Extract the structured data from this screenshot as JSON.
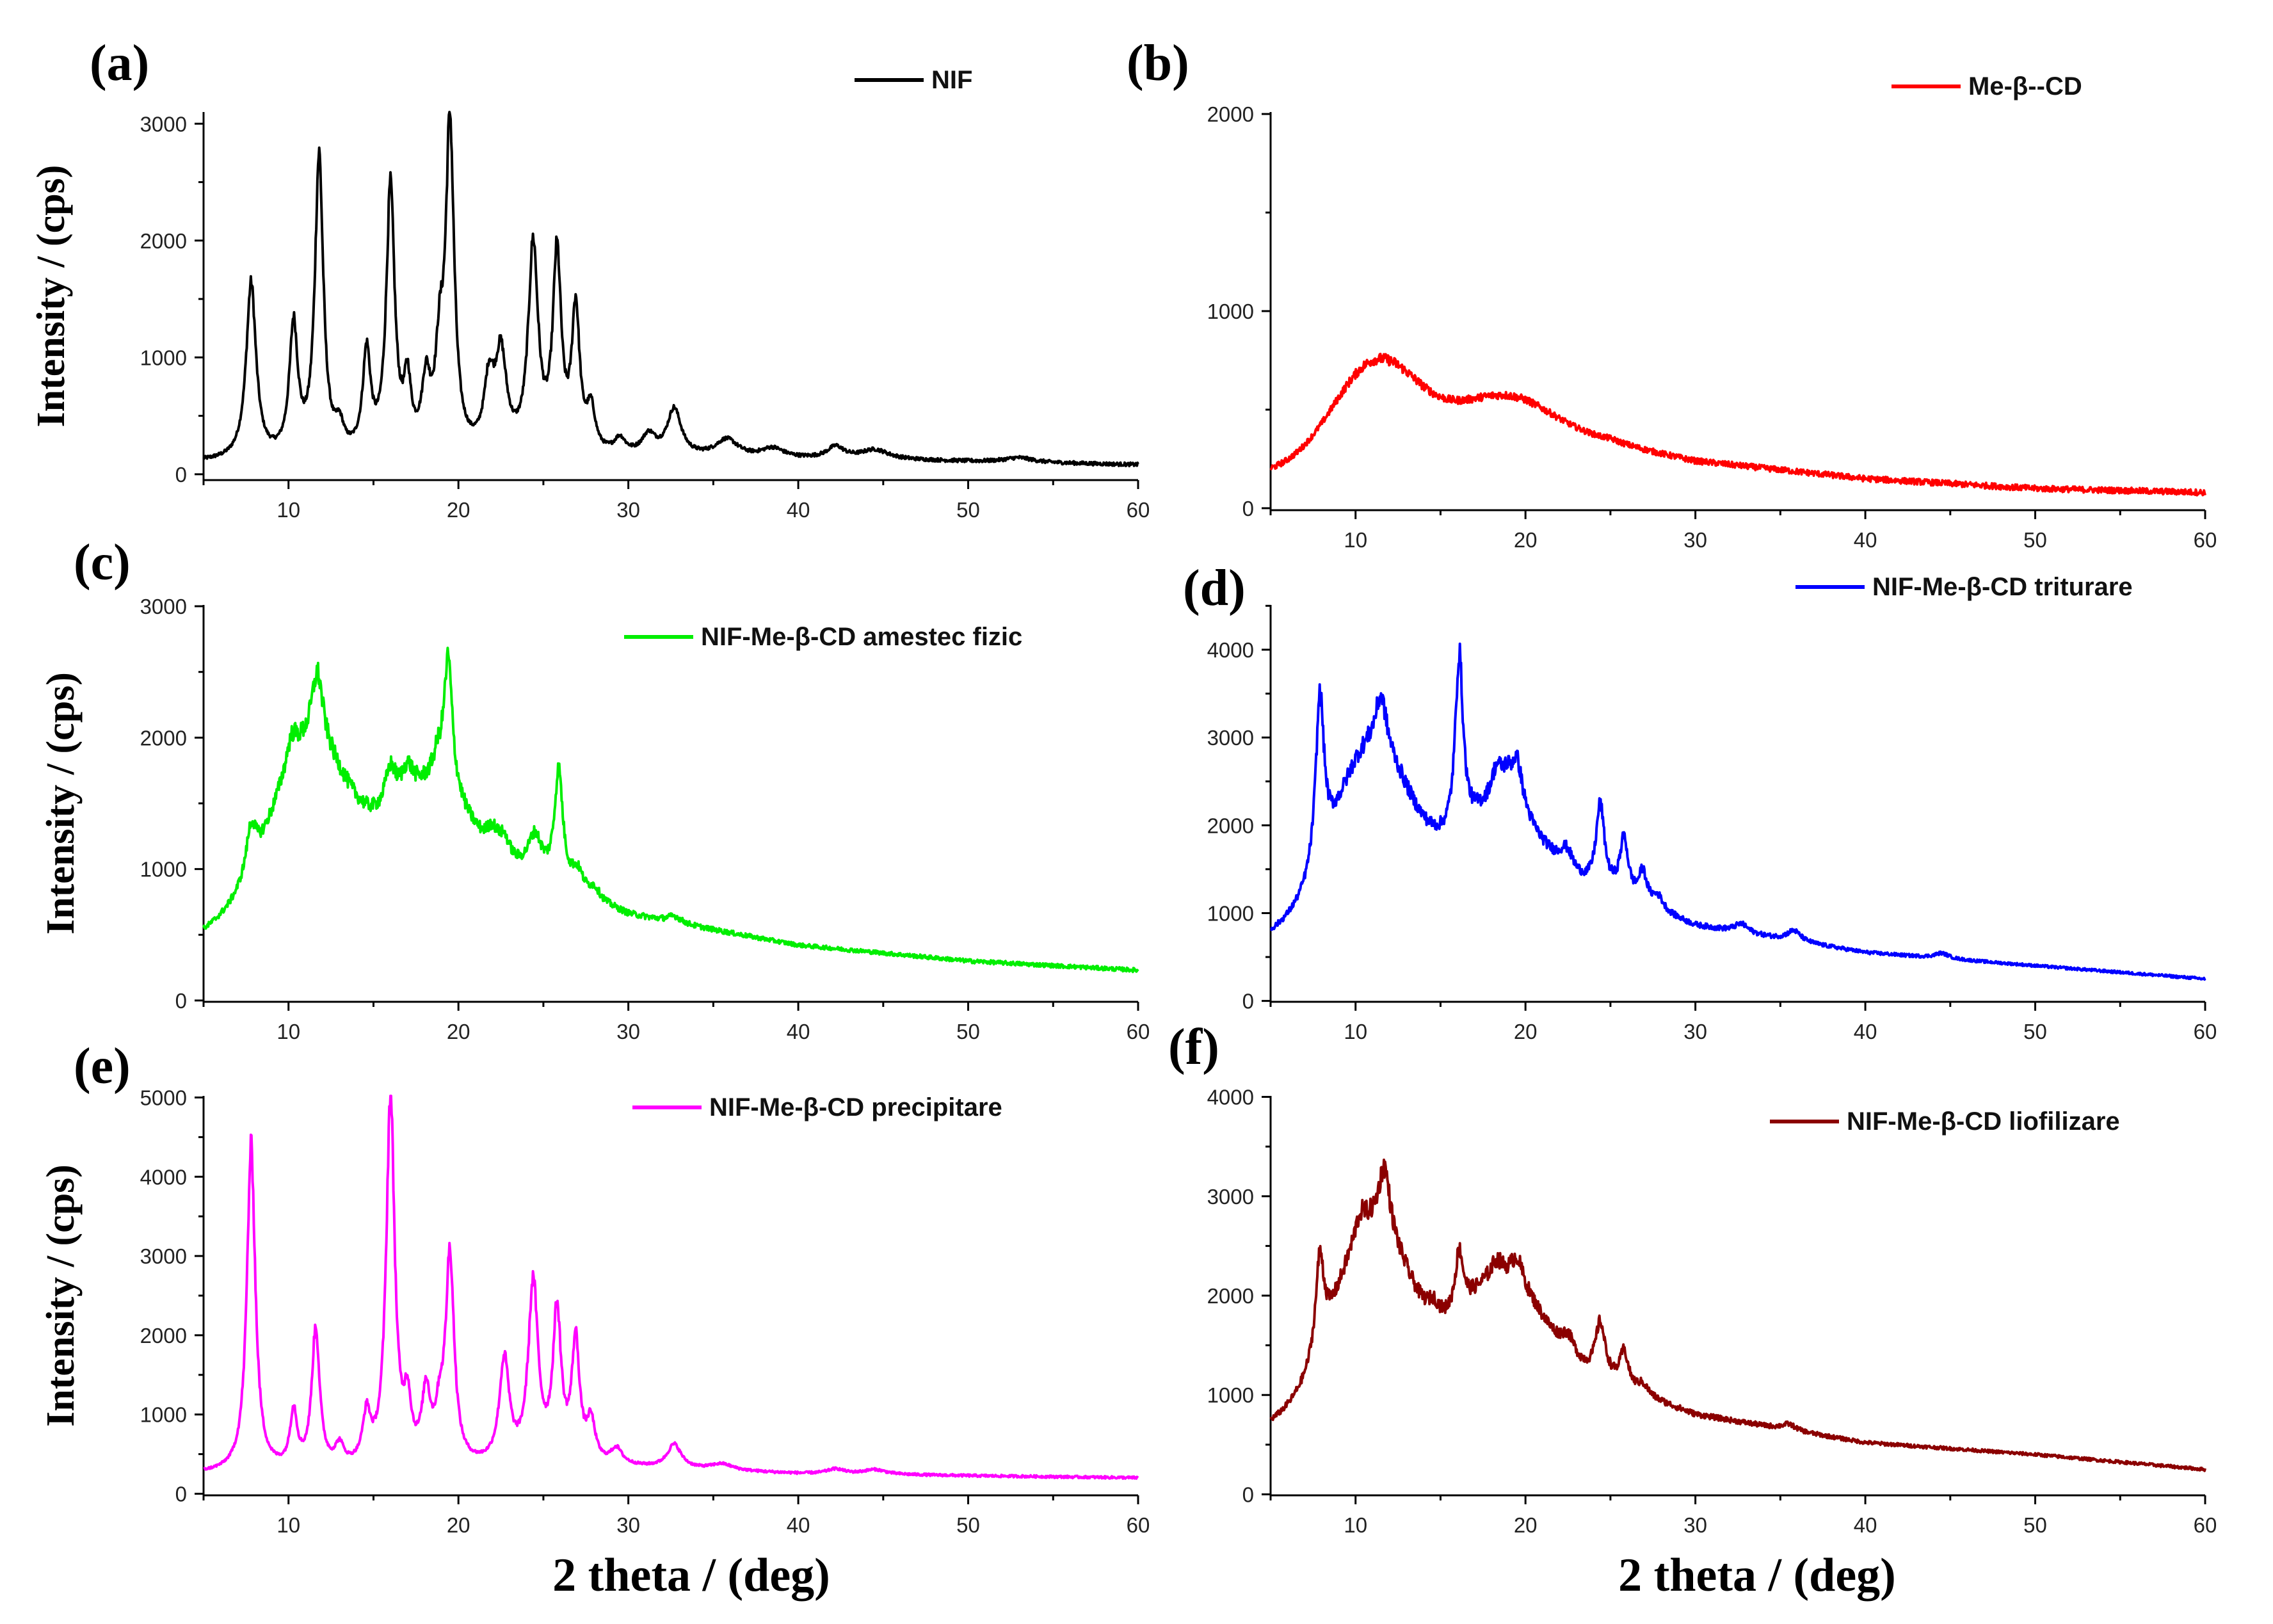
{
  "figure": {
    "xlabel_left": "2 theta / (deg)",
    "xlabel_right": "2 theta / (deg)"
  },
  "chart_data": [
    {
      "type": "line",
      "panel": "(a)",
      "legend": "NIF",
      "color": "#000000",
      "ylabel": "Intensity / (cps)",
      "xlabel": "",
      "xlim": [
        5,
        60
      ],
      "ylim": [
        -50,
        3100
      ],
      "xticks": [
        10,
        20,
        30,
        40,
        50,
        60
      ],
      "yticks": [
        0,
        1000,
        2000,
        3000
      ],
      "peaks": [
        [
          7.8,
          1500,
          0.35
        ],
        [
          10.3,
          1100,
          0.3
        ],
        [
          11.8,
          2550,
          0.3
        ],
        [
          13.0,
          200,
          0.3
        ],
        [
          14.6,
          850,
          0.28
        ],
        [
          16.0,
          2250,
          0.3
        ],
        [
          17.0,
          550,
          0.25
        ],
        [
          18.1,
          550,
          0.3
        ],
        [
          18.9,
          700,
          0.3
        ],
        [
          19.5,
          2750,
          0.3
        ],
        [
          21.8,
          550,
          0.35
        ],
        [
          22.5,
          800,
          0.4
        ],
        [
          24.4,
          1750,
          0.35
        ],
        [
          25.8,
          1650,
          0.3
        ],
        [
          26.9,
          1200,
          0.28
        ],
        [
          27.8,
          350,
          0.3
        ],
        [
          29.5,
          130,
          0.4
        ],
        [
          31.2,
          170,
          0.5
        ],
        [
          32.7,
          400,
          0.5
        ],
        [
          35.8,
          150,
          0.8
        ],
        [
          38.5,
          80,
          0.8
        ],
        [
          42.2,
          100,
          0.6
        ],
        [
          44.5,
          80,
          1.0
        ],
        [
          53.0,
          40,
          1.0
        ]
      ],
      "humps": [],
      "baseline": [
        [
          5,
          100
        ],
        [
          20,
          120
        ],
        [
          35,
          130
        ],
        [
          45,
          120
        ],
        [
          60,
          80
        ]
      ]
    },
    {
      "type": "line",
      "panel": "(b)",
      "legend": "Me-β--CD",
      "color": "#ff0000",
      "ylabel": "",
      "xlabel": "",
      "xlim": [
        5,
        60
      ],
      "ylim": [
        -10,
        2010
      ],
      "xticks": [
        10,
        20,
        30,
        40,
        50,
        60
      ],
      "yticks": [
        0,
        1000,
        2000
      ],
      "peaks": [],
      "humps": [
        [
          11.2,
          500,
          2.5
        ],
        [
          18.5,
          260,
          3.0
        ]
      ],
      "baseline": [
        [
          5,
          180
        ],
        [
          12,
          250
        ],
        [
          20,
          320
        ],
        [
          25,
          330
        ],
        [
          30,
          240
        ],
        [
          40,
          150
        ],
        [
          50,
          100
        ],
        [
          60,
          80
        ]
      ]
    },
    {
      "type": "line",
      "panel": "(c)",
      "legend": "NIF-Me-β-CD amestec fizic",
      "color": "#00ee00",
      "ylabel": "Intensity / (cps)",
      "xlabel": "",
      "xlim": [
        5,
        60
      ],
      "ylim": [
        -10,
        3010
      ],
      "xticks": [
        10,
        20,
        30,
        40,
        50,
        60
      ],
      "yticks": [
        0,
        1000,
        2000,
        3000
      ],
      "peaks": [
        [
          7.8,
          350,
          0.35
        ],
        [
          10.2,
          200,
          0.4
        ],
        [
          11.7,
          550,
          0.4
        ],
        [
          16.0,
          300,
          0.4
        ],
        [
          17.0,
          200,
          0.4
        ],
        [
          18.8,
          200,
          0.4
        ],
        [
          19.4,
          1000,
          0.3
        ],
        [
          22.0,
          150,
          0.4
        ],
        [
          22.7,
          150,
          0.4
        ],
        [
          24.5,
          300,
          0.5
        ],
        [
          25.9,
          850,
          0.3
        ],
        [
          27.0,
          150,
          0.4
        ],
        [
          28.0,
          80,
          0.4
        ],
        [
          32.7,
          50,
          0.5
        ]
      ],
      "humps": [
        [
          11.3,
          1050,
          2.2
        ],
        [
          18.0,
          550,
          2.2
        ]
      ],
      "baseline": [
        [
          5,
          520
        ],
        [
          10,
          850
        ],
        [
          15,
          950
        ],
        [
          20,
          1100
        ],
        [
          25,
          900
        ],
        [
          30,
          650
        ],
        [
          40,
          420
        ],
        [
          50,
          300
        ],
        [
          60,
          230
        ]
      ]
    },
    {
      "type": "line",
      "panel": "(d)",
      "legend": "NIF-Me-β-CD triturare",
      "color": "#0000ff",
      "ylabel": "",
      "xlabel": "",
      "xlim": [
        5,
        60
      ],
      "ylim": [
        -10,
        4510
      ],
      "xticks": [
        10,
        20,
        30,
        40,
        50,
        60
      ],
      "yticks": [
        0,
        1000,
        2000,
        3000,
        4000
      ],
      "peaks": [
        [
          7.9,
          1900,
          0.3
        ],
        [
          11.5,
          600,
          0.4
        ],
        [
          16.1,
          2000,
          0.28
        ],
        [
          18.3,
          350,
          0.4
        ],
        [
          18.9,
          250,
          0.4
        ],
        [
          19.5,
          550,
          0.4
        ],
        [
          22.4,
          250,
          0.5
        ],
        [
          24.4,
          950,
          0.3
        ],
        [
          25.8,
          650,
          0.3
        ],
        [
          26.9,
          350,
          0.3
        ],
        [
          27.8,
          150,
          0.4
        ],
        [
          32.7,
          100,
          0.5
        ],
        [
          35.8,
          120,
          0.5
        ],
        [
          44.5,
          60,
          0.5
        ]
      ],
      "humps": [
        [
          11.0,
          1750,
          2.2
        ],
        [
          18.3,
          900,
          2.4
        ]
      ],
      "baseline": [
        [
          5,
          750
        ],
        [
          10,
          1100
        ],
        [
          15,
          1200
        ],
        [
          20,
          1300
        ],
        [
          25,
          1200
        ],
        [
          30,
          850
        ],
        [
          40,
          550
        ],
        [
          50,
          400
        ],
        [
          60,
          250
        ]
      ]
    },
    {
      "type": "line",
      "panel": "(e)",
      "legend": "NIF-Me-β-CD precipitare",
      "color": "#ff00ff",
      "ylabel": "Intensity / (cps)",
      "xlabel": "",
      "xlim": [
        5,
        60
      ],
      "ylim": [
        -20,
        5020
      ],
      "xticks": [
        10,
        20,
        30,
        40,
        50,
        60
      ],
      "yticks": [
        0,
        1000,
        2000,
        3000,
        4000,
        5000
      ],
      "peaks": [
        [
          7.8,
          4100,
          0.3
        ],
        [
          10.3,
          700,
          0.25
        ],
        [
          11.6,
          1750,
          0.28
        ],
        [
          13.0,
          250,
          0.3
        ],
        [
          14.6,
          600,
          0.28
        ],
        [
          16.0,
          4650,
          0.3
        ],
        [
          17.0,
          700,
          0.25
        ],
        [
          18.1,
          850,
          0.3
        ],
        [
          18.9,
          500,
          0.3
        ],
        [
          19.5,
          2600,
          0.3
        ],
        [
          22.7,
          1300,
          0.35
        ],
        [
          24.4,
          2250,
          0.35
        ],
        [
          25.8,
          1850,
          0.3
        ],
        [
          26.9,
          1500,
          0.28
        ],
        [
          27.8,
          500,
          0.3
        ],
        [
          29.3,
          200,
          0.4
        ],
        [
          32.7,
          300,
          0.5
        ],
        [
          35.5,
          80,
          0.8
        ],
        [
          42.2,
          60,
          0.6
        ],
        [
          44.5,
          60,
          0.8
        ]
      ],
      "humps": [],
      "baseline": [
        [
          5,
          250
        ],
        [
          20,
          300
        ],
        [
          30,
          320
        ],
        [
          40,
          250
        ],
        [
          60,
          200
        ]
      ]
    },
    {
      "type": "line",
      "panel": "(f)",
      "legend": "NIF-Me-β-CD liofilizare",
      "color": "#8b0000",
      "ylabel": "",
      "xlabel": "",
      "xlim": [
        5,
        60
      ],
      "ylim": [
        -10,
        4010
      ],
      "xticks": [
        10,
        20,
        30,
        40,
        50,
        60
      ],
      "yticks": [
        0,
        1000,
        2000,
        3000,
        4000
      ],
      "peaks": [
        [
          7.9,
          950,
          0.3
        ],
        [
          10.3,
          200,
          0.4
        ],
        [
          11.7,
          650,
          0.4
        ],
        [
          14.6,
          150,
          0.4
        ],
        [
          16.1,
          600,
          0.3
        ],
        [
          18.3,
          150,
          0.4
        ],
        [
          19.5,
          250,
          0.4
        ],
        [
          22.5,
          200,
          0.5
        ],
        [
          24.4,
          550,
          0.35
        ],
        [
          25.8,
          350,
          0.3
        ],
        [
          26.9,
          100,
          0.4
        ],
        [
          35.5,
          60,
          0.5
        ]
      ],
      "humps": [
        [
          11.0,
          1650,
          2.2
        ],
        [
          18.5,
          1000,
          2.4
        ]
      ],
      "baseline": [
        [
          5,
          700
        ],
        [
          10,
          1000
        ],
        [
          15,
          1100
        ],
        [
          20,
          1200
        ],
        [
          25,
          1100
        ],
        [
          30,
          800
        ],
        [
          40,
          520
        ],
        [
          50,
          400
        ],
        [
          60,
          250
        ]
      ]
    }
  ]
}
